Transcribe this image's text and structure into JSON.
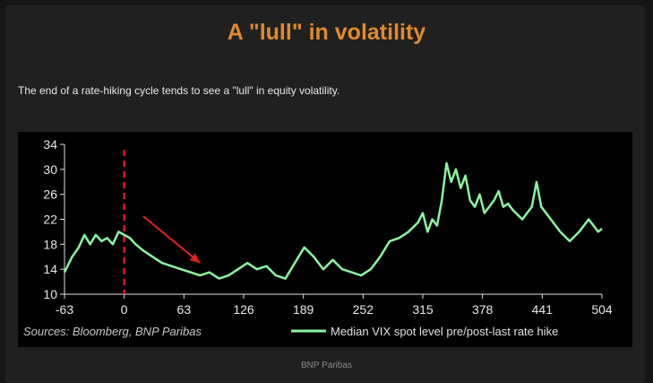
{
  "page": {
    "title": "A \"lull\" in volatility",
    "subtitle": "The end of a rate-hiking cycle tends to see a \"lull\" in equity volatility.",
    "source": "BNP Paribas"
  },
  "colors": {
    "title": "#e08a2c",
    "line": "#8cf5a0",
    "marker": "#d22020",
    "arrow": "#e02020"
  },
  "chart_data": {
    "type": "line",
    "title": "",
    "xlabel": "",
    "ylabel": "",
    "xlim": [
      -63,
      504
    ],
    "ylim": [
      10,
      34
    ],
    "xticks": [
      "-63",
      "0",
      "63",
      "126",
      "189",
      "252",
      "315",
      "378",
      "441",
      "504"
    ],
    "yticks": [
      "10",
      "14",
      "18",
      "22",
      "26",
      "30",
      "34"
    ],
    "source_note": "Sources: Bloomberg, BNP Paribas",
    "grid": false,
    "legend_position": "bottom-right",
    "annotations": [
      {
        "type": "vertical-dashed-line",
        "x": 0
      },
      {
        "type": "arrow",
        "from": [
          20,
          22.5
        ],
        "to": [
          80,
          15
        ]
      }
    ],
    "series": [
      {
        "name": "Median VIX spot level pre/post-last rate hike",
        "x": [
          -63,
          -55,
          -48,
          -42,
          -36,
          -30,
          -24,
          -18,
          -12,
          -6,
          0,
          6,
          12,
          20,
          30,
          40,
          50,
          60,
          70,
          80,
          90,
          100,
          110,
          120,
          130,
          140,
          150,
          160,
          170,
          180,
          190,
          200,
          210,
          220,
          230,
          240,
          250,
          260,
          270,
          280,
          290,
          300,
          310,
          315,
          320,
          325,
          330,
          335,
          340,
          345,
          350,
          355,
          360,
          365,
          370,
          375,
          380,
          385,
          390,
          395,
          400,
          405,
          410,
          420,
          430,
          435,
          440,
          445,
          450,
          460,
          470,
          480,
          490,
          500,
          504
        ],
        "y": [
          13.5,
          16,
          17.5,
          19.5,
          18,
          19.5,
          18.5,
          19,
          18,
          20,
          19.5,
          19,
          18,
          17,
          16,
          15,
          14.5,
          14,
          13.5,
          13,
          13.5,
          12.5,
          13,
          14,
          15,
          14,
          14.5,
          13,
          12.5,
          15,
          17.5,
          16,
          14,
          15.5,
          14,
          13.5,
          13,
          14,
          16,
          18.5,
          19,
          20,
          21.5,
          23,
          20,
          22,
          21,
          25,
          31,
          28,
          30,
          27,
          29,
          25,
          24,
          26,
          23,
          24,
          25,
          26.5,
          24,
          24.5,
          23.5,
          22,
          24,
          28,
          24,
          23,
          22,
          20,
          18.5,
          20,
          22,
          20,
          20.5
        ]
      }
    ]
  }
}
